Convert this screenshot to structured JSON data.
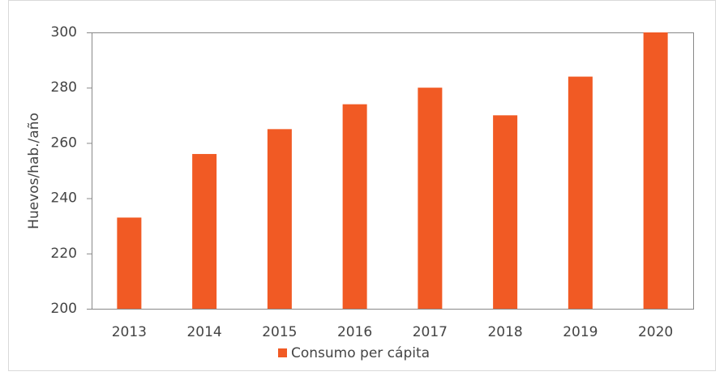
{
  "chart_data": {
    "type": "bar",
    "y_axis_label": "Huevos/hab./año",
    "categories": [
      "2013",
      "2014",
      "2015",
      "2016",
      "2017",
      "2018",
      "2019",
      "2020"
    ],
    "series": [
      {
        "name": "Consumo per cápita",
        "color": "#f15a24",
        "values": [
          233,
          256,
          265,
          274,
          280,
          270,
          284,
          300
        ]
      }
    ],
    "ylim": [
      200,
      300
    ],
    "yticks": [
      200,
      220,
      240,
      260,
      280,
      300
    ],
    "grid": false,
    "legend": "bottom"
  }
}
